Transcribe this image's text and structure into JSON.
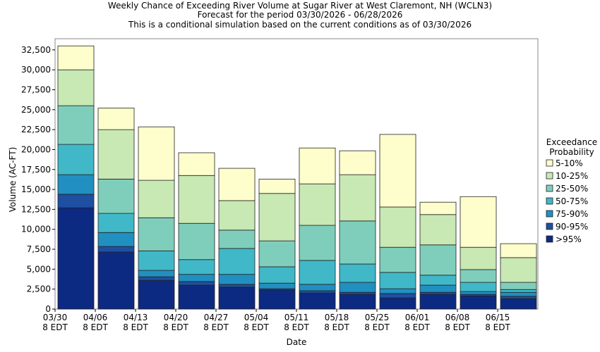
{
  "chart_data": {
    "type": "stacked_bar",
    "title": "Weekly Chance of Exceeding River Volume at Sugar River at West Claremont, NH (WCLN3)",
    "subtitle": [
      "Forecast for the period 03/30/2026 - 06/28/2026",
      "This is a conditional simulation based on the current conditions as of 03/30/2026"
    ],
    "x_label": "Date",
    "y_label": "Volume (AC-FT)",
    "legend_title": "Exceedance Probability",
    "categories": [
      "03/30\n8 EDT",
      "04/06\n8 EDT",
      "04/13\n8 EDT",
      "04/20\n8 EDT",
      "04/27\n8 EDT",
      "05/04\n8 EDT",
      "05/11\n8 EDT",
      "05/18\n8 EDT",
      "05/25\n8 EDT",
      "06/01\n8 EDT",
      "06/08\n8 EDT",
      "06/15\n8 EDT"
    ],
    "series": [
      {
        "name": ">95%",
        "color": "#0d2a82",
        "values": [
          12700,
          7150,
          3600,
          3000,
          2750,
          2400,
          2000,
          1850,
          1400,
          1850,
          1650,
          1300
        ]
      },
      {
        "name": "90-95%",
        "color": "#1f4fa0",
        "values": [
          1700,
          700,
          450,
          450,
          350,
          150,
          300,
          250,
          550,
          250,
          200,
          300
        ]
      },
      {
        "name": "75-90%",
        "color": "#2190c0",
        "values": [
          2450,
          1750,
          800,
          900,
          1250,
          700,
          800,
          1250,
          600,
          900,
          350,
          500
        ]
      },
      {
        "name": "50-75%",
        "color": "#40b8c8",
        "values": [
          3800,
          2400,
          2450,
          1850,
          3250,
          2050,
          3000,
          2300,
          2050,
          1250,
          1150,
          350
        ]
      },
      {
        "name": "25-50%",
        "color": "#7fcebb",
        "values": [
          4850,
          4300,
          4150,
          4550,
          2300,
          3250,
          4400,
          5400,
          3150,
          3800,
          1600,
          900
        ]
      },
      {
        "name": "10-25%",
        "color": "#c8e8b4",
        "values": [
          4500,
          6200,
          4700,
          6000,
          3700,
          5950,
          5200,
          5800,
          5050,
          3800,
          2800,
          3100
        ]
      },
      {
        "name": "5-10%",
        "color": "#fefecc",
        "values": [
          3000,
          2700,
          6700,
          2850,
          4050,
          1800,
          4500,
          3000,
          9100,
          1550,
          6350,
          1750
        ]
      }
    ],
    "ylim": [
      0,
      33900
    ],
    "yticks": [
      0,
      {
        "value": 2500,
        "label": "2,500"
      },
      {
        "value": 5000,
        "label": "5,000"
      },
      {
        "value": 7500,
        "label": "7,500"
      },
      {
        "value": 10000,
        "label": "10,000"
      },
      {
        "value": 12500,
        "label": "12,500"
      },
      {
        "value": 15000,
        "label": "15,000"
      },
      {
        "value": 17500,
        "label": "17,500"
      },
      {
        "value": 20000,
        "label": "20,000"
      },
      {
        "value": 22500,
        "label": "22,500"
      },
      {
        "value": 25000,
        "label": "25,000"
      },
      {
        "value": 27500,
        "label": "27,500"
      },
      {
        "value": 30000,
        "label": "30,000"
      },
      {
        "value": 32500,
        "label": "32,500"
      }
    ]
  }
}
